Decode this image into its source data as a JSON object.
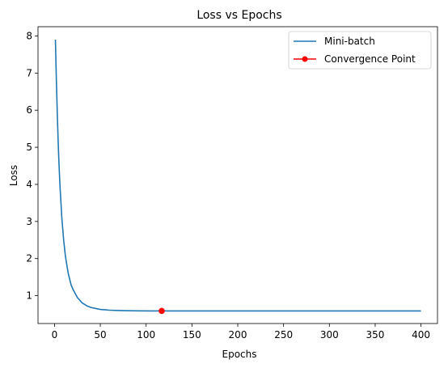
{
  "chart_data": {
    "type": "line",
    "title": "Loss vs Epochs",
    "xlabel": "Epochs",
    "ylabel": "Loss",
    "xlim": [
      -18,
      418
    ],
    "ylim": [
      0.25,
      8.25
    ],
    "xticks": [
      "0",
      "50",
      "100",
      "150",
      "200",
      "250",
      "300",
      "350",
      "400"
    ],
    "yticks": [
      "1",
      "2",
      "3",
      "4",
      "5",
      "6",
      "7",
      "8"
    ],
    "grid": false,
    "legend_position": "top-right",
    "series": [
      {
        "name": "Mini-batch",
        "color": "#1f77b4",
        "x": [
          1,
          2,
          3,
          4,
          5,
          6,
          8,
          10,
          12,
          15,
          18,
          20,
          25,
          30,
          35,
          40,
          50,
          60,
          70,
          80,
          100,
          117,
          150,
          200,
          250,
          300,
          350,
          400
        ],
        "y": [
          7.9,
          6.85,
          5.95,
          5.15,
          4.5,
          3.95,
          3.1,
          2.5,
          2.05,
          1.6,
          1.3,
          1.18,
          0.95,
          0.81,
          0.73,
          0.68,
          0.63,
          0.61,
          0.6,
          0.595,
          0.59,
          0.59,
          0.59,
          0.59,
          0.59,
          0.59,
          0.59,
          0.59
        ]
      },
      {
        "name": "Convergence Point",
        "color": "#ff0000",
        "x": [
          117
        ],
        "y": [
          0.59
        ]
      }
    ]
  }
}
